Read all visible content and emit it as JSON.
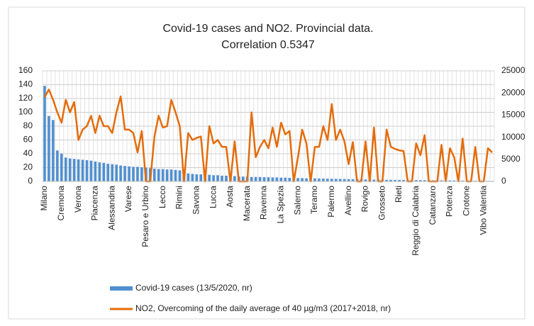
{
  "chart_data": {
    "type": "combo",
    "title": "Covid-19 cases and NO2. Provincial data.",
    "subtitle": "Correlation 0.5347",
    "categories": [
      "Milano",
      null,
      null,
      null,
      "Cremona",
      null,
      null,
      null,
      "Verona",
      null,
      null,
      null,
      "Piacenza",
      null,
      null,
      null,
      "Alessandria",
      null,
      null,
      null,
      "Varese",
      null,
      null,
      null,
      "Pesaro e Urbino",
      null,
      null,
      null,
      "Lecco",
      null,
      null,
      null,
      "Rimini",
      null,
      null,
      null,
      "Savona",
      null,
      null,
      null,
      "Lucca",
      null,
      null,
      null,
      "Aosta",
      null,
      null,
      null,
      "Macerata",
      null,
      null,
      null,
      "Ravenna",
      null,
      null,
      null,
      "La Spezia",
      null,
      null,
      null,
      "Salerno",
      null,
      null,
      null,
      "Teramo",
      null,
      null,
      null,
      "Palermo",
      null,
      null,
      null,
      "Avellino",
      null,
      null,
      null,
      "Rovigo",
      null,
      null,
      null,
      "Grosseto",
      null,
      null,
      null,
      "Rieti",
      null,
      null,
      null,
      "Reggio di Calabria",
      null,
      null,
      null,
      "Catanzaro",
      null,
      null,
      null,
      "Potenza",
      null,
      null,
      null,
      "Crotone",
      null,
      null,
      null,
      "Vibo Valentia",
      null,
      null
    ],
    "series": [
      {
        "name": "Covid-19 cases (13/5/2020, nr)",
        "type": "bar",
        "axis": "y2",
        "color": "#4f8fd0",
        "values": [
          21600,
          14800,
          13900,
          7000,
          6300,
          5400,
          5200,
          5100,
          5000,
          4900,
          4800,
          4700,
          4500,
          4300,
          4200,
          4000,
          3900,
          3800,
          3600,
          3500,
          3400,
          3300,
          3300,
          3200,
          3100,
          3000,
          2900,
          2800,
          2800,
          2700,
          2700,
          2600,
          2500,
          2400,
          1800,
          1700,
          1600,
          1600,
          1500,
          1500,
          1400,
          1400,
          1300,
          1300,
          1200,
          1200,
          1100,
          1100,
          1100,
          1000,
          1000,
          1000,
          950,
          950,
          900,
          900,
          850,
          850,
          800,
          800,
          750,
          750,
          700,
          700,
          680,
          660,
          640,
          620,
          600,
          580,
          560,
          540,
          520,
          500,
          480,
          460,
          440,
          420,
          400,
          390,
          380,
          370,
          360,
          350,
          340,
          330,
          320,
          310,
          300,
          290,
          280,
          270,
          260,
          250,
          240,
          230,
          220,
          210,
          200,
          190,
          180,
          170,
          160,
          150,
          140,
          130,
          120
        ]
      },
      {
        "name": "NO2, Overcoming of the daily average of 40 µg/m3 (2017+2018, nr)",
        "type": "line",
        "axis": "y",
        "color": "#e46c0a",
        "values": [
          122,
          133,
          118,
          100,
          85,
          118,
          100,
          115,
          60,
          75,
          80,
          95,
          70,
          95,
          80,
          80,
          70,
          100,
          123,
          75,
          75,
          70,
          42,
          73,
          0,
          0,
          65,
          95,
          78,
          80,
          118,
          100,
          80,
          0,
          70,
          60,
          63,
          65,
          0,
          80,
          55,
          60,
          50,
          50,
          0,
          58,
          0,
          0,
          0,
          100,
          35,
          50,
          60,
          48,
          78,
          50,
          85,
          68,
          73,
          0,
          35,
          75,
          55,
          0,
          50,
          50,
          80,
          60,
          112,
          60,
          75,
          58,
          25,
          57,
          0,
          0,
          58,
          0,
          78,
          0,
          0,
          75,
          50,
          47,
          45,
          44,
          0,
          0,
          55,
          38,
          67,
          0,
          0,
          0,
          53,
          0,
          48,
          35,
          0,
          62,
          0,
          0,
          50,
          0,
          0,
          48,
          42
        ]
      }
    ],
    "ylim": [
      0,
      160
    ],
    "yticks": [
      0,
      20,
      40,
      60,
      80,
      100,
      120,
      140,
      160
    ],
    "y2lim": [
      0,
      25000
    ],
    "y2ticks": [
      0,
      5000,
      10000,
      15000,
      20000,
      25000
    ],
    "grid": true
  }
}
